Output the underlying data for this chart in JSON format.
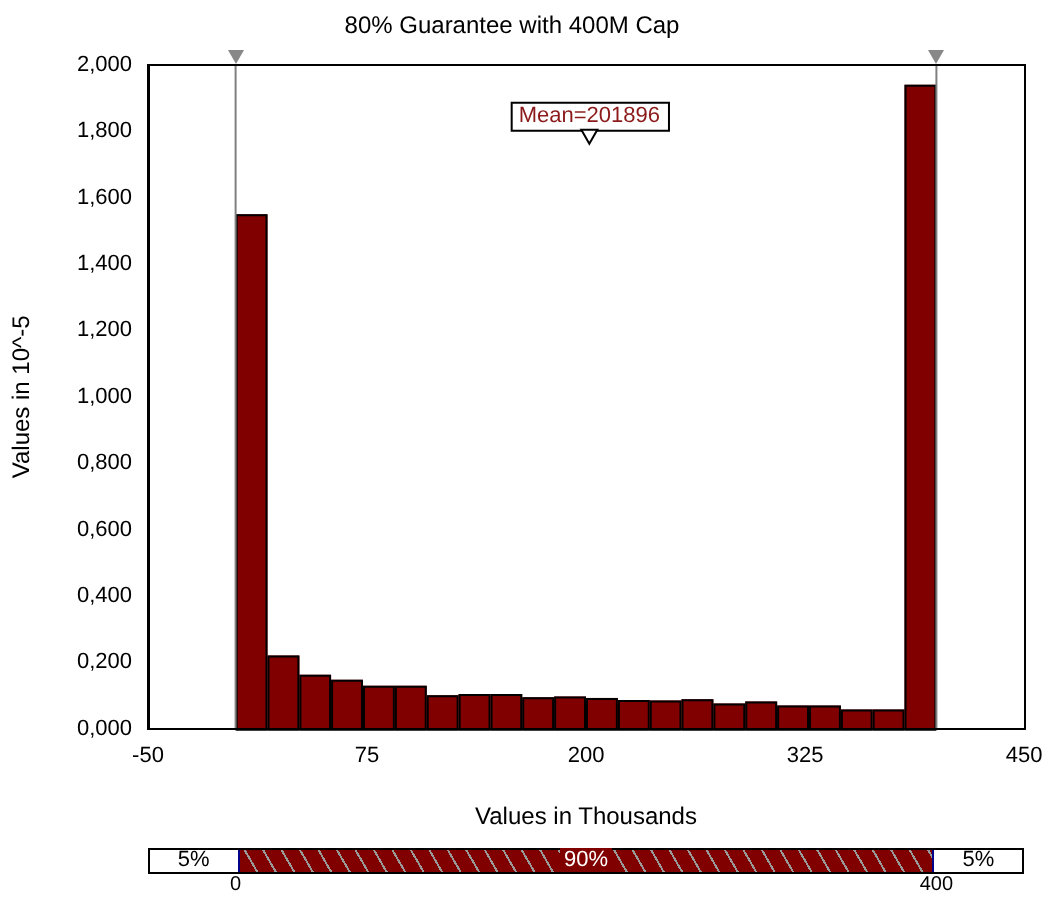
{
  "chart_data": {
    "type": "histogram",
    "title": "80% Guarantee with 400M Cap",
    "xlabel": "Values in Thousands",
    "ylabel": "Values in 10^-5",
    "bins": [
      0,
      18.2,
      36.4,
      54.5,
      72.7,
      90.9,
      109.1,
      127.3,
      145.5,
      163.6,
      181.8,
      200,
      218.2,
      236.4,
      254.5,
      272.7,
      290.9,
      309.1,
      327.3,
      345.5,
      363.6,
      381.8,
      400
    ],
    "values": [
      1.55,
      0.221,
      0.163,
      0.148,
      0.13,
      0.13,
      0.101,
      0.105,
      0.105,
      0.095,
      0.097,
      0.093,
      0.087,
      0.085,
      0.089,
      0.076,
      0.082,
      0.07,
      0.07,
      0.058,
      0.058,
      1.94
    ],
    "color": "#800000",
    "xlim": [
      -50,
      450
    ],
    "xticks": [
      -50,
      75,
      200,
      325,
      450
    ],
    "ylim": [
      0,
      2
    ],
    "yticks": [
      {
        "value": 0,
        "label": "0,000"
      },
      {
        "value": 0.2,
        "label": "0,200"
      },
      {
        "value": 0.4,
        "label": "0,400"
      },
      {
        "value": 0.6,
        "label": "0,600"
      },
      {
        "value": 0.8,
        "label": "0,800"
      },
      {
        "value": 1,
        "label": "1,000"
      },
      {
        "value": 1.2,
        "label": "1,200"
      },
      {
        "value": 1.4,
        "label": "1,400"
      },
      {
        "value": 1.6,
        "label": "1,600"
      },
      {
        "value": 1.8,
        "label": "1,800"
      },
      {
        "value": 2,
        "label": "2,000"
      }
    ],
    "grid": false,
    "ref_lines": [
      {
        "axis": "x",
        "value": 0,
        "color": "#808080"
      },
      {
        "axis": "x",
        "value": 400,
        "color": "#808080"
      }
    ],
    "annotations": [
      {
        "text": "Mean=201896",
        "x": 201.9,
        "y": 1.78
      },
      "5%",
      "90%",
      "5%",
      "0",
      "400"
    ]
  }
}
